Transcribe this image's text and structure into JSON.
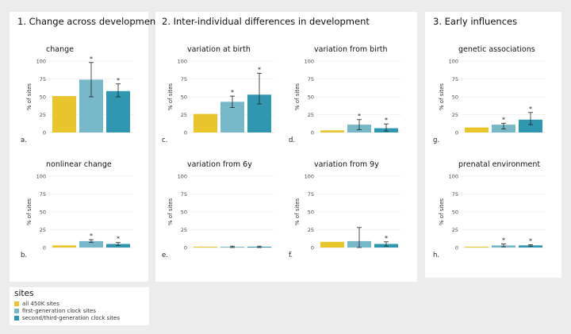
{
  "colors": {
    "series1": "#e8c52a",
    "series2": "#77b8c8",
    "series3": "#2f97b0"
  },
  "sections": [
    {
      "title": "1. Change across development"
    },
    {
      "title": "2. Inter-individual differences in development"
    },
    {
      "title": "3. Early influences"
    }
  ],
  "legend": {
    "title": "sites",
    "items": [
      "all 450K sites",
      "first-generation clock sites",
      "second/third-generation clock sites"
    ]
  },
  "chart_data": [
    {
      "type": "bar",
      "letter": "a.",
      "title": "change",
      "ylabel": "% of sites",
      "ylim": [
        0,
        100
      ],
      "yticks": [
        0,
        25,
        50,
        75,
        100
      ],
      "values": [
        51,
        74,
        58
      ],
      "err_low": [
        null,
        50,
        50
      ],
      "err_high": [
        null,
        98,
        68
      ],
      "sig": [
        "",
        "*",
        "*"
      ]
    },
    {
      "type": "bar",
      "letter": "b.",
      "title": "nonlinear change",
      "ylabel": "% of sites",
      "ylim": [
        0,
        100
      ],
      "yticks": [
        0,
        25,
        50,
        75,
        100
      ],
      "values": [
        3,
        9,
        5
      ],
      "err_low": [
        null,
        7,
        3
      ],
      "err_high": [
        null,
        11,
        7
      ],
      "sig": [
        "",
        "*",
        "*"
      ]
    },
    {
      "type": "bar",
      "letter": "c.",
      "title": "variation at birth",
      "ylabel": "% of sites",
      "ylim": [
        0,
        100
      ],
      "yticks": [
        0,
        25,
        50,
        75,
        100
      ],
      "values": [
        26,
        43,
        53
      ],
      "err_low": [
        null,
        35,
        40
      ],
      "err_high": [
        null,
        51,
        83
      ],
      "sig": [
        "",
        "*",
        "*"
      ]
    },
    {
      "type": "bar",
      "letter": "d.",
      "title": "variation from birth",
      "ylabel": "% of sites",
      "ylim": [
        0,
        100
      ],
      "yticks": [
        0,
        25,
        50,
        75,
        100
      ],
      "values": [
        3,
        11,
        6
      ],
      "err_low": [
        null,
        4,
        2
      ],
      "err_high": [
        null,
        18,
        12
      ],
      "sig": [
        "",
        "*",
        "*"
      ]
    },
    {
      "type": "bar",
      "letter": "e.",
      "title": "variation from 6y",
      "ylabel": "% of sites",
      "ylim": [
        0,
        100
      ],
      "yticks": [
        0,
        25,
        50,
        75,
        100
      ],
      "values": [
        0.5,
        1,
        1
      ],
      "err_low": [
        null,
        0,
        0
      ],
      "err_high": [
        null,
        2,
        2
      ],
      "sig": [
        "",
        "",
        ""
      ]
    },
    {
      "type": "bar",
      "letter": "f.",
      "title": "variation from 9y",
      "ylabel": "% of sites",
      "ylim": [
        0,
        100
      ],
      "yticks": [
        0,
        25,
        50,
        75,
        100
      ],
      "values": [
        8,
        9,
        5
      ],
      "err_low": [
        null,
        0,
        2
      ],
      "err_high": [
        null,
        28,
        8
      ],
      "sig": [
        "",
        "",
        "*"
      ]
    },
    {
      "type": "bar",
      "letter": "g.",
      "title": "genetic associations",
      "ylabel": "% of sites",
      "ylim": [
        0,
        100
      ],
      "yticks": [
        0,
        25,
        50,
        75,
        100
      ],
      "values": [
        7,
        11,
        18
      ],
      "err_low": [
        null,
        5,
        11
      ],
      "err_high": [
        null,
        13,
        28
      ],
      "sig": [
        "",
        "*",
        "*"
      ]
    },
    {
      "type": "bar",
      "letter": "h.",
      "title": "prenatal environment",
      "ylabel": "% of sites",
      "ylim": [
        0,
        100
      ],
      "yticks": [
        0,
        25,
        50,
        75,
        100
      ],
      "values": [
        0.5,
        3,
        3
      ],
      "err_low": [
        null,
        1,
        2
      ],
      "err_high": [
        null,
        5,
        4
      ],
      "sig": [
        "",
        "*",
        "*"
      ]
    }
  ]
}
